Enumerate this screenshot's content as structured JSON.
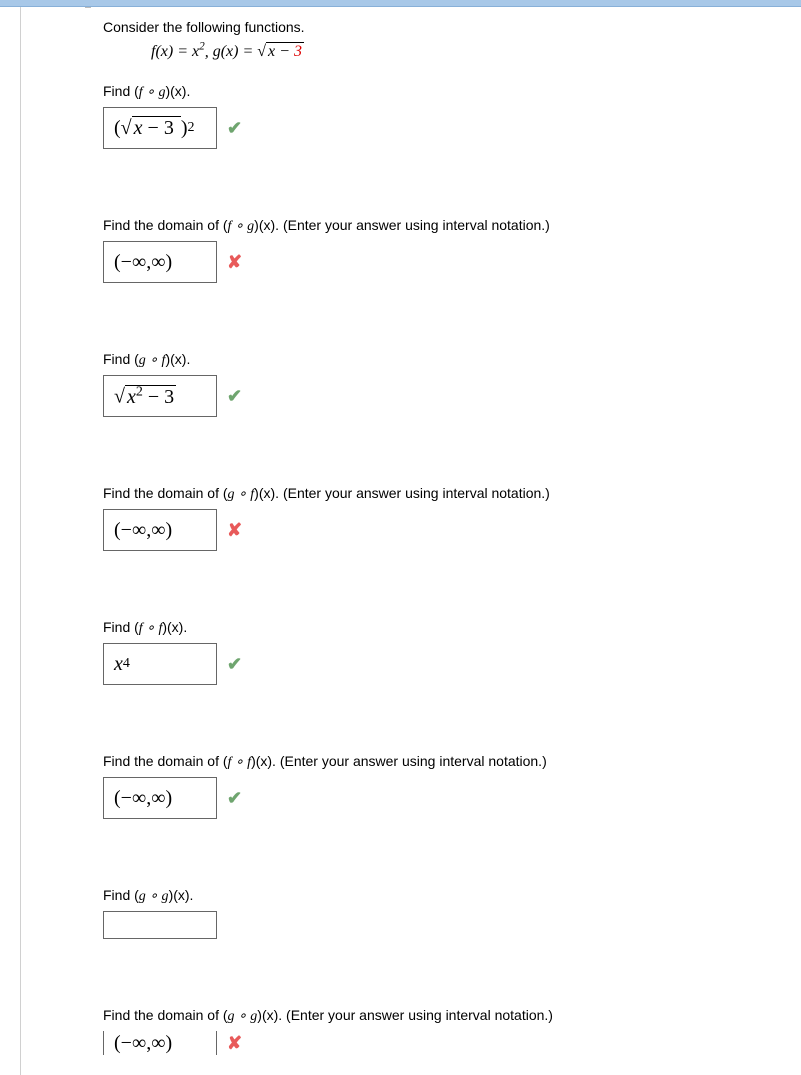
{
  "intro": "Consider the following functions.",
  "func_f_lhs": "f(x) = x",
  "func_f_exp": "2",
  "func_sep": ",   ",
  "func_g_lhs": "g(x) = ",
  "func_g_rad_pre": "x − ",
  "func_g_rad_3": "3",
  "blocks": [
    {
      "prompt_pre": "Find  (",
      "prompt_comp": "f ∘ g",
      "prompt_post": ")(x).",
      "answer_html": "(<span class='sqrt'><span class='radic'>√</span><span class='radicand'><i>x</i> − 3&nbsp;</span></span>)<sup>2</sup>",
      "status": "check"
    },
    {
      "prompt_pre": "Find the domain of  (",
      "prompt_comp": "f ∘ g",
      "prompt_post": ")(x).  (Enter your answer using interval notation.)",
      "answer_html": "(−<span class='infinity'>∞</span>, <span class='infinity'>∞</span>)",
      "status": "cross"
    },
    {
      "prompt_pre": "Find  (",
      "prompt_comp": "g ∘ f",
      "prompt_post": ")(x).",
      "answer_html": "<span class='sqrt'><span class='radic'>√</span><span class='radicand'><i>x</i><sup>2</sup> − 3</span></span>",
      "status": "check"
    },
    {
      "prompt_pre": "Find the domain of  (",
      "prompt_comp": "g ∘ f",
      "prompt_post": ")(x).  (Enter your answer using interval notation.)",
      "answer_html": "(−<span class='infinity'>∞</span>, <span class='infinity'>∞</span>)",
      "status": "cross"
    },
    {
      "prompt_pre": "Find  (",
      "prompt_comp": "f ∘ f",
      "prompt_post": ")(x).",
      "answer_html": "<i>x</i><sup>4</sup>",
      "status": "check"
    },
    {
      "prompt_pre": "Find the domain of  (",
      "prompt_comp": "f ∘ f",
      "prompt_post": ")(x).  (Enter your answer using interval notation.)",
      "answer_html": "(−<span class='infinity'>∞</span>, <span class='infinity'>∞</span>)",
      "status": "check"
    },
    {
      "prompt_pre": "Find  (",
      "prompt_comp": "g ∘ g",
      "prompt_post": ")(x).",
      "answer_html": "",
      "status": ""
    },
    {
      "prompt_pre": "Find the domain of  (",
      "prompt_comp": "g ∘ g",
      "prompt_post": ")(x).  (Enter your answer using interval notation.)",
      "answer_html": "(−<span class='infinity'>∞</span>, <span class='infinity'>∞</span>)",
      "status": "cross",
      "cutoff": true
    }
  ]
}
